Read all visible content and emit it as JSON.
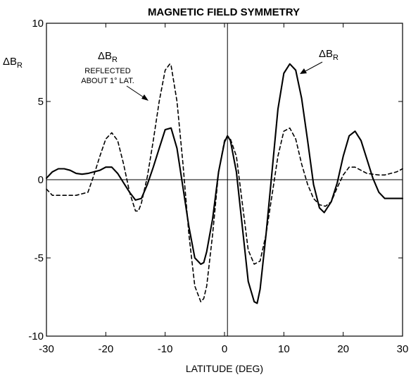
{
  "chart_data": {
    "type": "line",
    "title": "MAGNETIC FIELD SYMMETRY",
    "xlabel": "LATITUDE (DEG)",
    "ylabel": "ΔB",
    "ylabel_sub": "R",
    "xlim": [
      -30,
      30
    ],
    "ylim": [
      -10,
      10
    ],
    "x_ticks": [
      -30,
      -20,
      -10,
      0,
      10,
      20,
      30
    ],
    "y_ticks": [
      -10,
      -5,
      0,
      5,
      10
    ],
    "reference_lines": {
      "y": 0,
      "x": 0.5
    },
    "series": [
      {
        "name": "ΔB",
        "name_sub": "R",
        "style": "solid",
        "points": [
          [
            -30,
            0.1
          ],
          [
            -29,
            0.5
          ],
          [
            -28,
            0.7
          ],
          [
            -27,
            0.7
          ],
          [
            -26,
            0.6
          ],
          [
            -25,
            0.4
          ],
          [
            -24,
            0.35
          ],
          [
            -23,
            0.4
          ],
          [
            -22,
            0.5
          ],
          [
            -21,
            0.6
          ],
          [
            -20,
            0.8
          ],
          [
            -19,
            0.8
          ],
          [
            -18,
            0.4
          ],
          [
            -17,
            -0.2
          ],
          [
            -16,
            -0.8
          ],
          [
            -15,
            -1.3
          ],
          [
            -14,
            -1.2
          ],
          [
            -13,
            -0.3
          ],
          [
            -12,
            0.8
          ],
          [
            -11,
            2.0
          ],
          [
            -10,
            3.2
          ],
          [
            -9,
            3.3
          ],
          [
            -8,
            2.0
          ],
          [
            -7,
            -0.5
          ],
          [
            -6,
            -3.0
          ],
          [
            -5,
            -5.0
          ],
          [
            -4,
            -5.4
          ],
          [
            -3.5,
            -5.3
          ],
          [
            -3,
            -4.6
          ],
          [
            -2,
            -2.5
          ],
          [
            -1,
            0.5
          ],
          [
            0,
            2.4
          ],
          [
            0.5,
            2.8
          ],
          [
            1,
            2.5
          ],
          [
            2,
            0.5
          ],
          [
            3,
            -3.0
          ],
          [
            4,
            -6.5
          ],
          [
            5,
            -7.8
          ],
          [
            5.5,
            -7.9
          ],
          [
            6,
            -7.0
          ],
          [
            7,
            -3.5
          ],
          [
            8,
            0.5
          ],
          [
            9,
            4.5
          ],
          [
            10,
            6.8
          ],
          [
            11,
            7.4
          ],
          [
            12,
            7.0
          ],
          [
            13,
            5.2
          ],
          [
            14,
            2.5
          ],
          [
            15,
            -0.3
          ],
          [
            16,
            -1.8
          ],
          [
            16.8,
            -2.1
          ],
          [
            18,
            -1.4
          ],
          [
            19,
            -0.2
          ],
          [
            20,
            1.5
          ],
          [
            21,
            2.8
          ],
          [
            22,
            3.1
          ],
          [
            23,
            2.5
          ],
          [
            24,
            1.3
          ],
          [
            25,
            0.1
          ],
          [
            26,
            -0.8
          ],
          [
            27,
            -1.2
          ],
          [
            28,
            -1.2
          ],
          [
            29,
            -1.2
          ],
          [
            30,
            -1.2
          ]
        ]
      },
      {
        "name": "ΔB",
        "name_sub": "R",
        "name_extra": [
          "REFLECTED",
          "ABOUT 1° LAT."
        ],
        "style": "dashed",
        "points": [
          [
            -30,
            -0.6
          ],
          [
            -29,
            -1.0
          ],
          [
            -28,
            -1.0
          ],
          [
            -27,
            -1.0
          ],
          [
            -26,
            -1.0
          ],
          [
            -25,
            -1.0
          ],
          [
            -24,
            -0.9
          ],
          [
            -23,
            -0.8
          ],
          [
            -22,
            0.3
          ],
          [
            -21,
            1.5
          ],
          [
            -20,
            2.6
          ],
          [
            -19,
            3.0
          ],
          [
            -18,
            2.5
          ],
          [
            -17,
            1.0
          ],
          [
            -16,
            -0.8
          ],
          [
            -15,
            -2.0
          ],
          [
            -14.5,
            -2.0
          ],
          [
            -14,
            -1.5
          ],
          [
            -13,
            0.2
          ],
          [
            -12,
            2.5
          ],
          [
            -11,
            5.0
          ],
          [
            -10,
            7.0
          ],
          [
            -9.2,
            7.4
          ],
          [
            -9,
            7.3
          ],
          [
            -8,
            5.0
          ],
          [
            -7,
            1.0
          ],
          [
            -6,
            -3.5
          ],
          [
            -5,
            -6.8
          ],
          [
            -4,
            -7.8
          ],
          [
            -3.5,
            -7.6
          ],
          [
            -3,
            -6.8
          ],
          [
            -2,
            -3.5
          ],
          [
            -1,
            0.5
          ],
          [
            0,
            2.5
          ],
          [
            0.5,
            2.8
          ],
          [
            1,
            2.6
          ],
          [
            2,
            1.5
          ],
          [
            3,
            -1.5
          ],
          [
            4,
            -4.5
          ],
          [
            5,
            -5.4
          ],
          [
            6,
            -5.2
          ],
          [
            7,
            -3.5
          ],
          [
            8,
            -1.0
          ],
          [
            9,
            1.5
          ],
          [
            10,
            3.1
          ],
          [
            11,
            3.3
          ],
          [
            12,
            2.6
          ],
          [
            13,
            1.0
          ],
          [
            14,
            -0.3
          ],
          [
            15,
            -1.2
          ],
          [
            16,
            -1.6
          ],
          [
            17,
            -1.7
          ],
          [
            18,
            -1.4
          ],
          [
            19,
            -0.5
          ],
          [
            20,
            0.3
          ],
          [
            21,
            0.8
          ],
          [
            22,
            0.8
          ],
          [
            23,
            0.6
          ],
          [
            24,
            0.4
          ],
          [
            25,
            0.35
          ],
          [
            26,
            0.3
          ],
          [
            27,
            0.3
          ],
          [
            28,
            0.4
          ],
          [
            29,
            0.5
          ],
          [
            30,
            0.7
          ]
        ]
      }
    ]
  }
}
